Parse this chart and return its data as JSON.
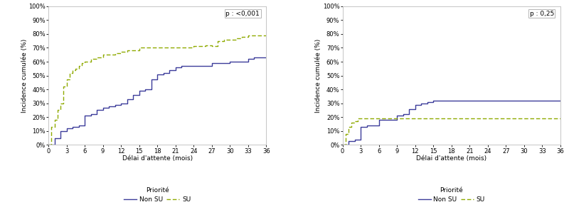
{
  "left": {
    "nonSU_x": [
      0,
      1,
      2,
      3,
      4,
      5,
      6,
      7,
      8,
      9,
      10,
      11,
      12,
      13,
      14,
      15,
      16,
      17,
      18,
      19,
      20,
      21,
      22,
      23,
      24,
      25,
      26,
      27,
      28,
      29,
      30,
      31,
      32,
      33,
      34,
      35,
      36
    ],
    "nonSU_y": [
      0,
      5,
      10,
      12,
      13,
      14,
      21,
      22,
      25,
      27,
      28,
      29,
      30,
      33,
      36,
      39,
      40,
      47,
      51,
      52,
      54,
      56,
      57,
      57,
      57,
      57,
      57,
      59,
      59,
      59,
      60,
      60,
      60,
      62,
      63,
      63,
      63
    ],
    "SU_x": [
      0,
      0.5,
      1,
      1.5,
      2,
      2.5,
      3,
      3.5,
      4,
      4.5,
      5,
      5.5,
      6,
      7,
      8,
      9,
      10,
      11,
      12,
      13,
      14,
      15,
      16,
      17,
      18,
      19,
      20,
      21,
      22,
      23,
      24,
      25,
      26,
      27,
      28,
      29,
      30,
      31,
      32,
      33,
      34,
      35,
      36
    ],
    "SU_y": [
      0,
      13,
      18,
      25,
      30,
      42,
      47,
      52,
      54,
      55,
      57,
      59,
      60,
      62,
      63,
      65,
      65,
      66,
      67,
      68,
      68,
      70,
      70,
      70,
      70,
      70,
      70,
      70,
      70,
      70,
      71,
      71,
      72,
      71,
      75,
      76,
      76,
      77,
      78,
      79,
      79,
      79,
      79
    ],
    "pvalue": "p : <0,001"
  },
  "right": {
    "nonSU_x": [
      0,
      1,
      2,
      3,
      4,
      5,
      6,
      7,
      8,
      9,
      10,
      11,
      12,
      13,
      14,
      15,
      16,
      36
    ],
    "nonSU_y": [
      0,
      3,
      4,
      13,
      14,
      14,
      18,
      18,
      18,
      21,
      22,
      26,
      29,
      30,
      31,
      32,
      32,
      32
    ],
    "SU_x": [
      0,
      0.5,
      1,
      1.5,
      2,
      2.5,
      3,
      4,
      5,
      6,
      7,
      8,
      36
    ],
    "SU_y": [
      0,
      8,
      13,
      16,
      17,
      19,
      19,
      19,
      19,
      19,
      19,
      19,
      19
    ],
    "pvalue": "p : 0,25"
  },
  "ylabel": "Incidence cumulée (%)",
  "xlabel": "Délai d'attente (mois)",
  "legend_label_nonSU": "Non SU",
  "legend_label_SU": "SU",
  "legend_title": "Priorité",
  "color_nonSU": "#3c3c9a",
  "color_SU": "#8faa00",
  "yticks": [
    0,
    10,
    20,
    30,
    40,
    50,
    60,
    70,
    80,
    90,
    100
  ],
  "xticks": [
    0,
    3,
    6,
    9,
    12,
    15,
    18,
    21,
    24,
    27,
    30,
    33,
    36
  ]
}
